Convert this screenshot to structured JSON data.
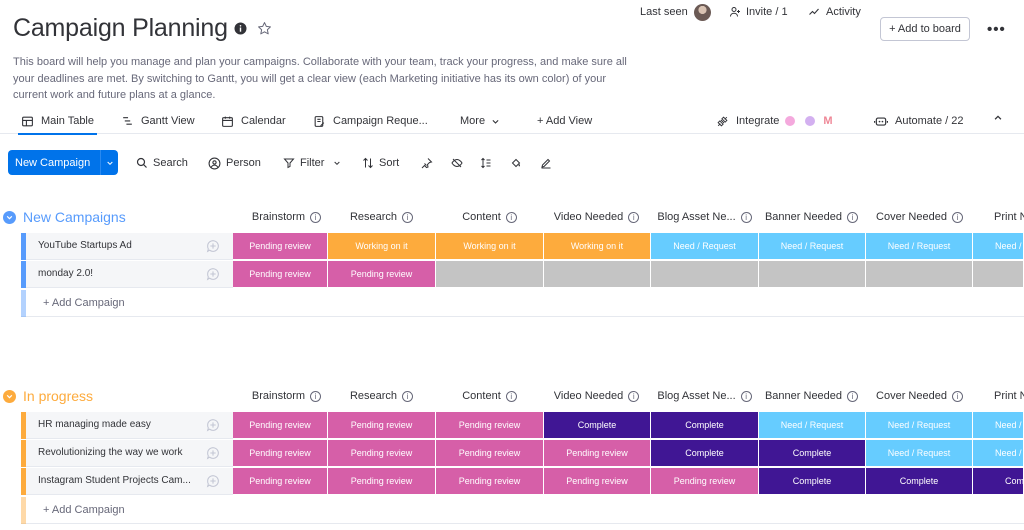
{
  "board": {
    "title": "Campaign Planning",
    "description": "This board will help you manage and plan your campaigns. Collaborate with your team, track your progress, and make sure all your deadlines are met. By switching to Gantt, you will get a clear view (each Marketing initiative has its own color) of your current work and future plans at a glance."
  },
  "header": {
    "last_seen": "Last seen",
    "invite": "Invite / 1",
    "activity": "Activity",
    "add_to_board": "+ Add to board"
  },
  "tabs": [
    {
      "label": "Main Table",
      "icon": "table-icon"
    },
    {
      "label": "Gantt View",
      "icon": "gantt-icon"
    },
    {
      "label": "Calendar",
      "icon": "calendar-icon"
    },
    {
      "label": "Campaign Reque...",
      "icon": "form-icon"
    },
    {
      "label": "More",
      "icon": "chevron-down-icon"
    },
    {
      "label": "+ Add View",
      "icon": ""
    }
  ],
  "integrate": "Integrate",
  "automate": "Automate / 22",
  "toolbar": {
    "new_item": "New Campaign",
    "search": "Search",
    "person": "Person",
    "filter": "Filter",
    "sort": "Sort"
  },
  "colors": {
    "accent": "#0073ea",
    "group_new": "#579bfc",
    "group_progress": "#fdab3d",
    "pending_review": "#e2445c",
    "pending_review_pink": "#d65fa8",
    "working_on_it": "#fdab3d",
    "need_request": "#66ccff",
    "complete": "#401694",
    "empty": "#c4c4c4"
  },
  "columns": [
    "Brainstorm",
    "Research",
    "Content",
    "Video Needed",
    "Blog Asset Ne...",
    "Banner Needed",
    "Cover Needed",
    "Print N"
  ],
  "groups": [
    {
      "title": "New Campaigns",
      "color": "#579bfc",
      "add_label": "+ Add Campaign",
      "rows": [
        {
          "name": "YouTube Startups Ad",
          "cells": [
            "Pending review",
            "Working on it",
            "Working on it",
            "Working on it",
            "Need / Request",
            "Need / Request",
            "Need / Request",
            "Need /"
          ]
        },
        {
          "name": "monday 2.0!",
          "cells": [
            "Pending review",
            "Pending review",
            "",
            "",
            "",
            "",
            "",
            ""
          ]
        }
      ]
    },
    {
      "title": "In progress",
      "color": "#fdab3d",
      "add_label": "+ Add Campaign",
      "rows": [
        {
          "name": "HR managing made easy",
          "cells": [
            "Pending review",
            "Pending review",
            "Pending review",
            "Complete",
            "Complete",
            "Need / Request",
            "Need / Request",
            "Need /"
          ]
        },
        {
          "name": "Revolutionizing the way we work",
          "cells": [
            "Pending review",
            "Pending review",
            "Pending review",
            "Pending review",
            "Complete",
            "Complete",
            "Need / Request",
            "Need /"
          ]
        },
        {
          "name": "Instagram Student Projects Cam...",
          "cells": [
            "Pending review",
            "Pending review",
            "Pending review",
            "Pending review",
            "Pending review",
            "Complete",
            "Complete",
            "Com"
          ]
        }
      ]
    }
  ]
}
